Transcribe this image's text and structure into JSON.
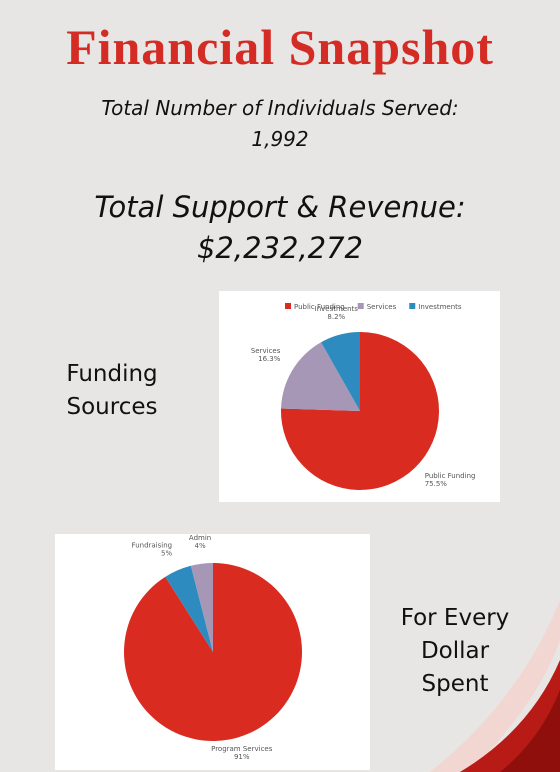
{
  "title": "Financial Snapshot",
  "individuals_label": "Total Number of Individuals Served:",
  "individuals_value": "1,992",
  "revenue_label": "Total Support & Revenue:",
  "revenue_value": "$2,232,272",
  "funding_caption": "Funding Sources",
  "spending_caption": "For Every Dollar Spent",
  "chart_data": [
    {
      "type": "pie",
      "categories": [
        "Public Funding",
        "Services",
        "Investments"
      ],
      "values": [
        75.5,
        16.3,
        8.2
      ],
      "value_labels": [
        "75.5%",
        "16.3%",
        "8.2%"
      ],
      "colors": [
        "#d92b1f",
        "#a597b5",
        "#2e8bbf"
      ],
      "legend": "top"
    },
    {
      "type": "pie",
      "categories": [
        "Program Services",
        "Fundraising",
        "Admin"
      ],
      "values": [
        91,
        5,
        4
      ],
      "value_labels": [
        "91%",
        "5%",
        "4%"
      ],
      "colors": [
        "#d92b1f",
        "#2e8bbf",
        "#a597b5"
      ]
    }
  ]
}
